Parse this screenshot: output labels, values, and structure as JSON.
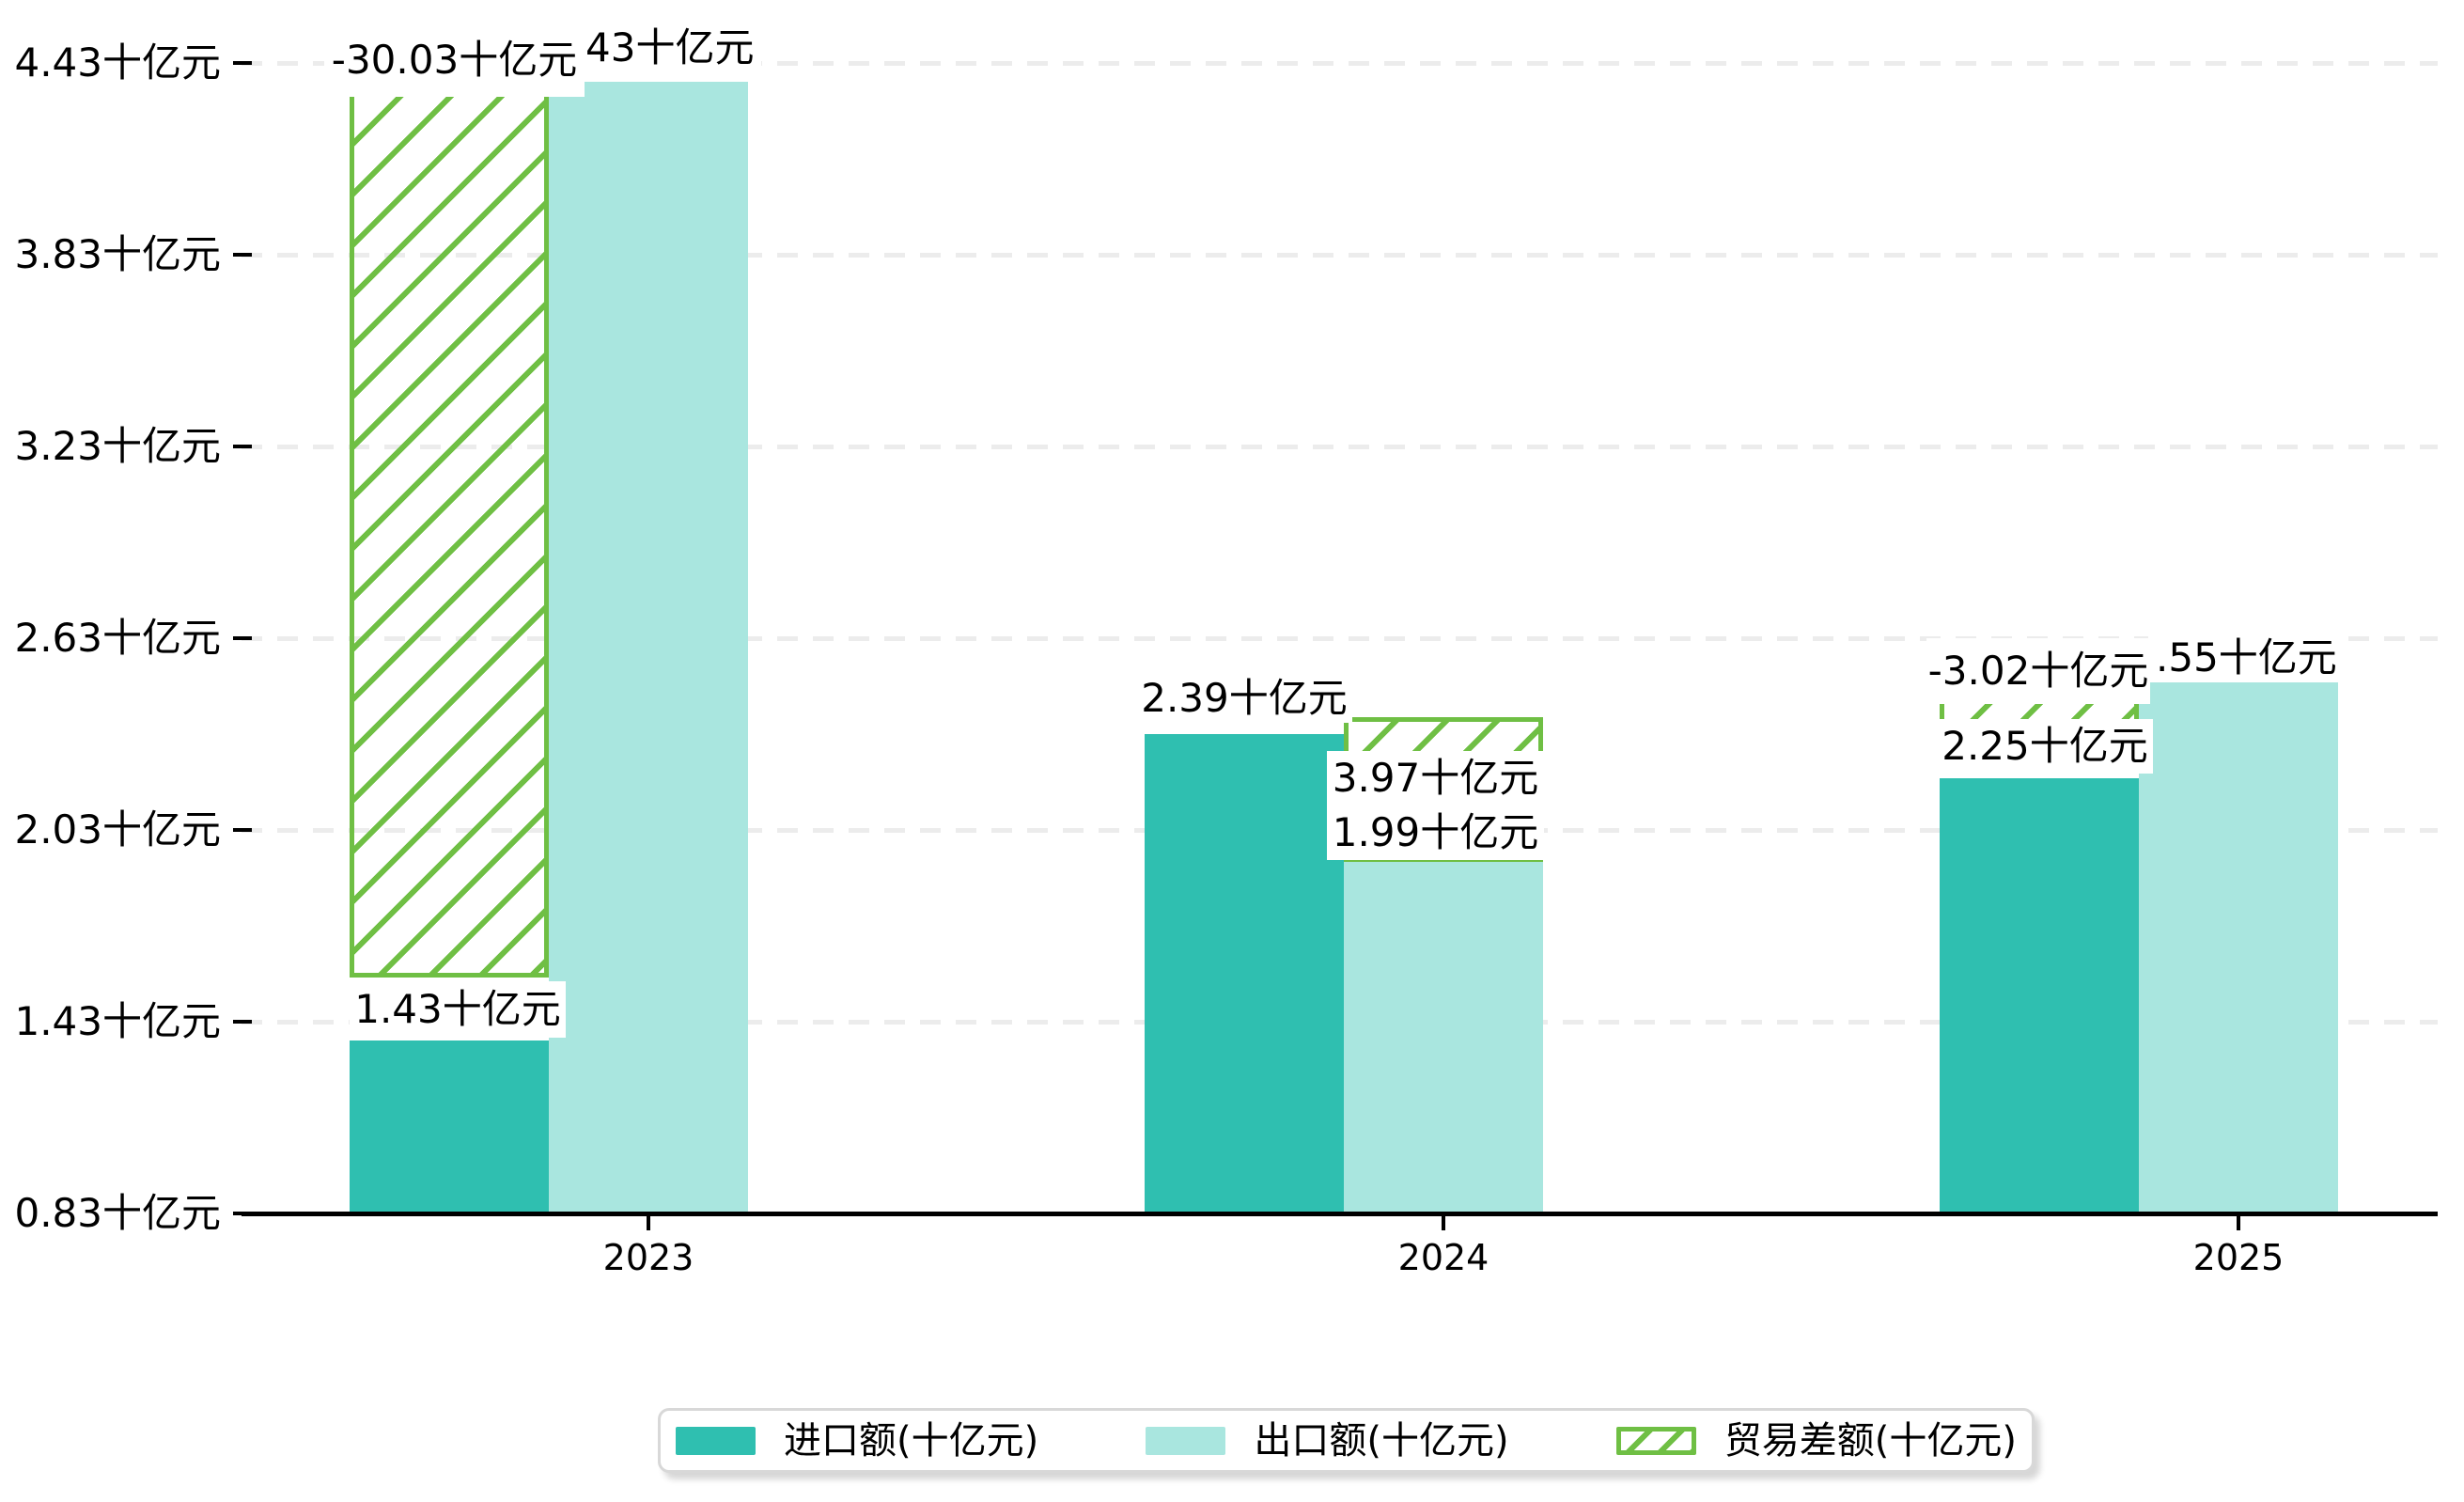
{
  "chart_data": {
    "type": "bar",
    "categories": [
      "2023",
      "2024",
      "2025"
    ],
    "series": [
      {
        "name": "进口额(十亿元)",
        "color": "#2fbfb0",
        "values": [
          1.43,
          2.39,
          2.25
        ],
        "data_labels": [
          "1.43十亿元",
          "2.39十亿元",
          "2.25十亿元"
        ]
      },
      {
        "name": "出口额(十亿元)",
        "color": "#a9e6df",
        "values": [
          4.43,
          1.99,
          2.55
        ],
        "data_labels": [
          "4.43十亿元",
          "1.99十亿元",
          "2.55十亿元"
        ],
        "data_labels_visible": [
          "43十亿元",
          "1.99十亿元",
          ".55十亿元"
        ]
      },
      {
        "name": "贸易差额(十亿元)",
        "color": "#6fbf44",
        "pattern": "diagonal-hatch",
        "values": [
          -30.03,
          3.97,
          -3.02
        ],
        "data_labels": [
          "-30.03十亿元",
          "3.97十亿元",
          "-3.02十亿元"
        ]
      }
    ],
    "y_axis": {
      "tick_labels": [
        "4.43十亿元",
        "3.83十亿元",
        "3.23十亿元",
        "2.63十亿元",
        "2.03十亿元",
        "1.43十亿元",
        "0.83十亿元"
      ],
      "min": 0.83,
      "max": 4.43
    },
    "x_axis": {
      "tick_labels": [
        "2023",
        "2024",
        "2025"
      ]
    },
    "grid": {
      "horizontal": true,
      "style": "dashed",
      "color": "#ececec"
    },
    "legend": {
      "position": "bottom",
      "items": [
        "进口额(十亿元)",
        "出口额(十亿元)",
        "贸易差额(十亿元)"
      ]
    }
  }
}
